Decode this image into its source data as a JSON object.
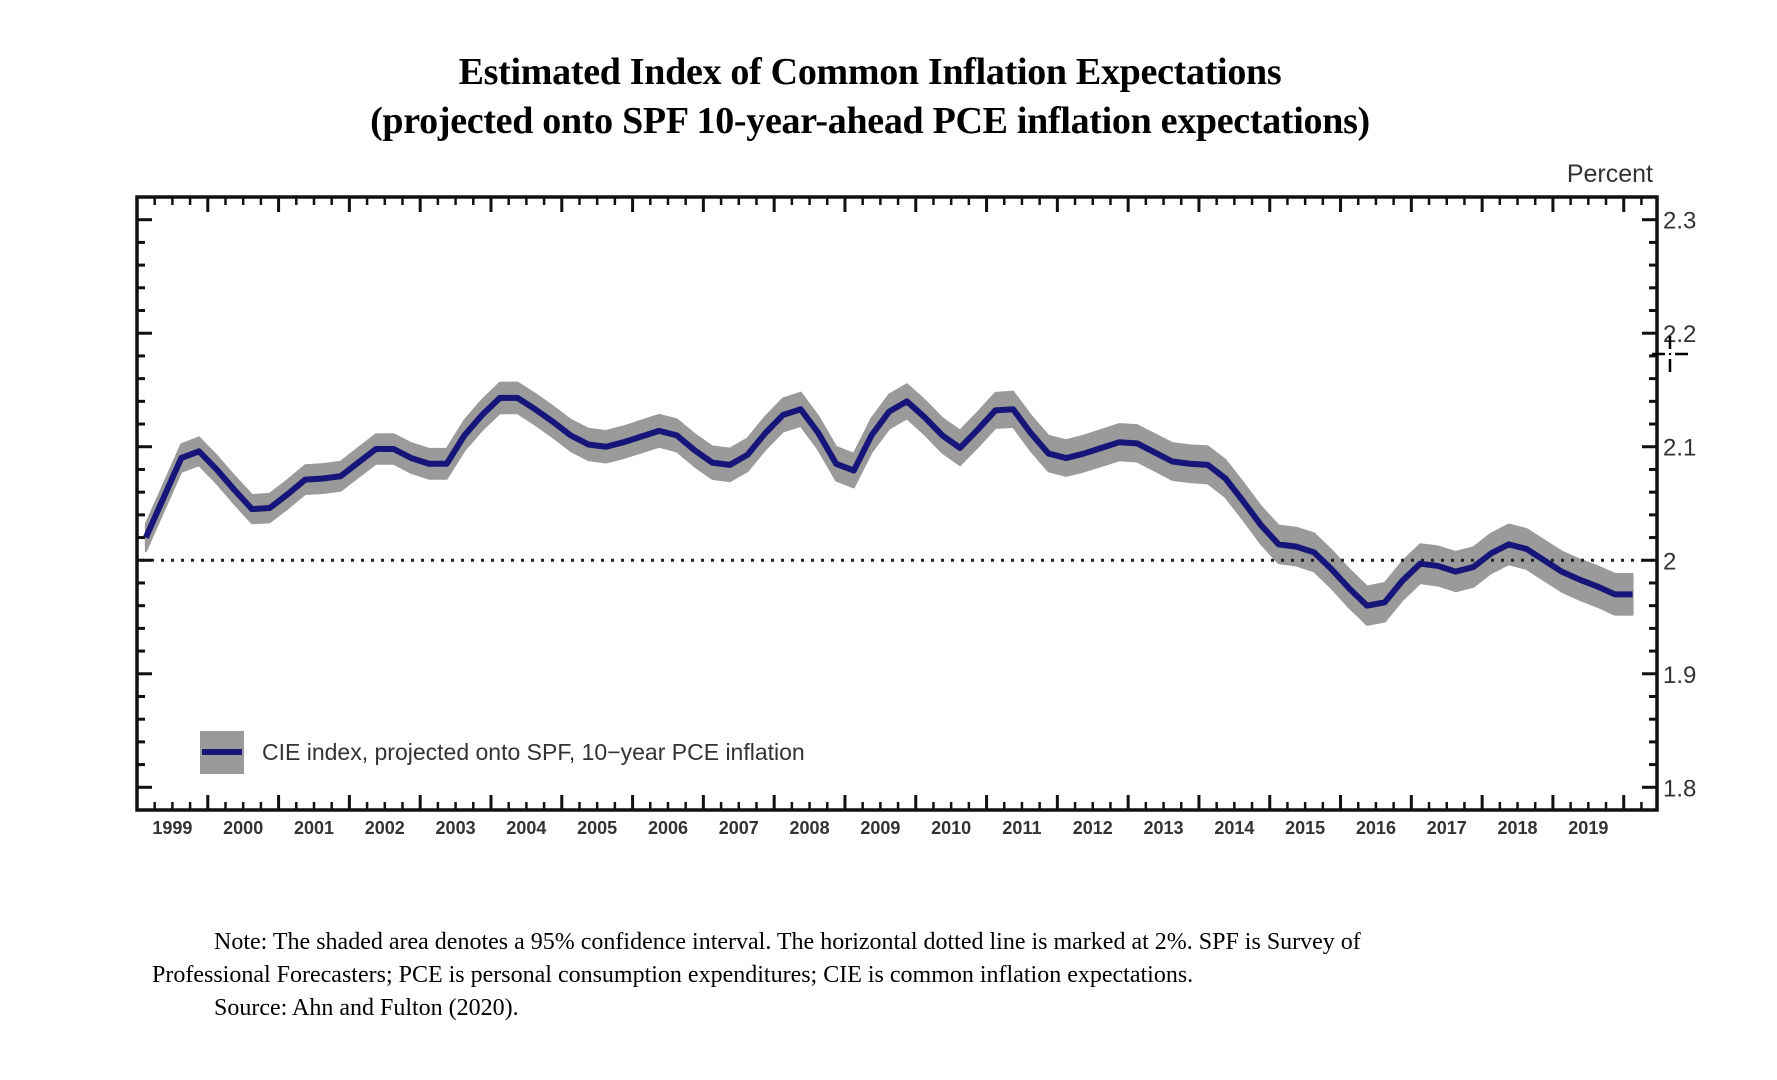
{
  "title_line1": "Estimated Index of Common Inflation Expectations",
  "title_line2": "(projected onto SPF 10-year-ahead PCE inflation expectations)",
  "note": {
    "line1": "Note:  The shaded area denotes a 95% confidence interval.  The horizontal dotted line is marked at 2%.  SPF is Survey of",
    "line2": "Professional Forecasters; PCE is personal consumption expenditures; CIE is common inflation expectations.",
    "source": "Source:  Ahn and Fulton (2020)."
  },
  "chart_data": {
    "type": "line",
    "title": "Estimated Index of Common Inflation Expectations (projected onto SPF 10-year-ahead PCE inflation expectations)",
    "xlabel": "",
    "ylabel": "Percent",
    "frequency": "quarterly",
    "start_period": "1999Q1",
    "x_tick_labels": [
      "1999",
      "2000",
      "2001",
      "2002",
      "2003",
      "2004",
      "2005",
      "2006",
      "2007",
      "2008",
      "2009",
      "2010",
      "2011",
      "2012",
      "2013",
      "2014",
      "2015",
      "2016",
      "2017",
      "2018",
      "2019"
    ],
    "y_tick_labels": [
      "1.8",
      "1.9",
      "2",
      "2.1",
      "2.2",
      "2.3"
    ],
    "y_ticks": [
      1.8,
      1.9,
      2.0,
      2.1,
      2.2,
      2.3
    ],
    "ylim": [
      1.78,
      2.32
    ],
    "xlim": [
      1999.0,
      2020.47
    ],
    "y_axis_side": "right",
    "grid": false,
    "reference_line": {
      "value": 2.0,
      "style": "dotted"
    },
    "legend": {
      "position": "bottom-left",
      "entries": [
        "CIE index, projected onto SPF, 10−year PCE inflation"
      ]
    },
    "colors": {
      "line": "#15157a",
      "band": "#9a9a9a"
    },
    "series": [
      {
        "name": "CIE index, projected onto SPF, 10−year PCE inflation",
        "values": [
          2.02,
          2.055,
          2.09,
          2.096,
          2.08,
          2.062,
          2.045,
          2.046,
          2.058,
          2.071,
          2.072,
          2.074,
          2.086,
          2.098,
          2.098,
          2.09,
          2.085,
          2.085,
          2.11,
          2.128,
          2.143,
          2.143,
          2.133,
          2.122,
          2.11,
          2.102,
          2.1,
          2.104,
          2.109,
          2.114,
          2.11,
          2.097,
          2.086,
          2.084,
          2.093,
          2.112,
          2.128,
          2.133,
          2.112,
          2.085,
          2.079,
          2.11,
          2.131,
          2.14,
          2.126,
          2.11,
          2.099,
          2.115,
          2.132,
          2.133,
          2.112,
          2.094,
          2.09,
          2.094,
          2.099,
          2.104,
          2.103,
          2.095,
          2.087,
          2.085,
          2.084,
          2.072,
          2.052,
          2.031,
          2.014,
          2.012,
          2.007,
          1.992,
          1.975,
          1.96,
          1.963,
          1.982,
          1.997,
          1.995,
          1.99,
          1.994,
          2.006,
          2.014,
          2.01,
          2.0,
          1.99,
          1.983,
          1.977,
          1.97,
          1.97
        ],
        "ci95_halfwidth_start": 0.012,
        "ci95_halfwidth_end": 0.018
      }
    ]
  }
}
